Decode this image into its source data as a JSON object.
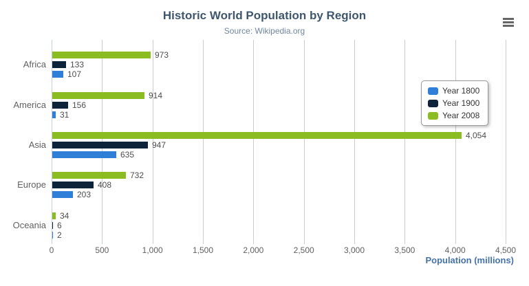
{
  "chart_data": {
    "type": "bar",
    "orientation": "horizontal",
    "title": "Historic World Population by Region",
    "subtitle": "Source: Wikipedia.org",
    "xlabel": "Population (millions)",
    "categories": [
      "Africa",
      "America",
      "Asia",
      "Europe",
      "Oceania"
    ],
    "series": [
      {
        "name": "Year 1800",
        "color": "#2f7ed8",
        "values": [
          107,
          31,
          635,
          203,
          2
        ]
      },
      {
        "name": "Year 1900",
        "color": "#0d233a",
        "values": [
          133,
          156,
          947,
          408,
          6
        ]
      },
      {
        "name": "Year 2008",
        "color": "#8bbc21",
        "values": [
          973,
          914,
          4054,
          732,
          34
        ]
      }
    ],
    "bar_display_order_top_to_bottom": [
      "Year 2008",
      "Year 1900",
      "Year 1800"
    ],
    "data_labels": {
      "Africa": {
        "Year 2008": "973",
        "Year 1900": "133",
        "Year 1800": "107"
      },
      "America": {
        "Year 2008": "914",
        "Year 1900": "156",
        "Year 1800": "31"
      },
      "Asia": {
        "Year 2008": "4,054",
        "Year 1900": "947",
        "Year 1800": "635"
      },
      "Europe": {
        "Year 2008": "732",
        "Year 1900": "408",
        "Year 1800": "203"
      },
      "Oceania": {
        "Year 2008": "34",
        "Year 1900": "6",
        "Year 1800": "2"
      }
    },
    "xlim": [
      0,
      4500
    ],
    "xticks": [
      0,
      500,
      1000,
      1500,
      2000,
      2500,
      3000,
      3500,
      4000,
      4500
    ],
    "xtick_labels": [
      "0",
      "500",
      "1,000",
      "1,500",
      "2,000",
      "2,500",
      "3,000",
      "3,500",
      "4,000",
      "4,500"
    ],
    "grid": true,
    "legend_position": "right-inside"
  },
  "export_menu": {
    "icon": "hamburger-menu-icon"
  },
  "colors": {
    "title": "#3E576F",
    "subtitle": "#6D869F",
    "axis_title": "#4572A7",
    "tick_label": "#606060",
    "category_label": "#606060",
    "data_label": "#4d4d4d",
    "gridline": "#cccccc",
    "axis_line": "#c0d0e0",
    "menu_icon": "#666666",
    "series_year_1800": "#2f7ed8",
    "series_year_1900": "#0d233a",
    "series_year_2008": "#8bbc21"
  }
}
